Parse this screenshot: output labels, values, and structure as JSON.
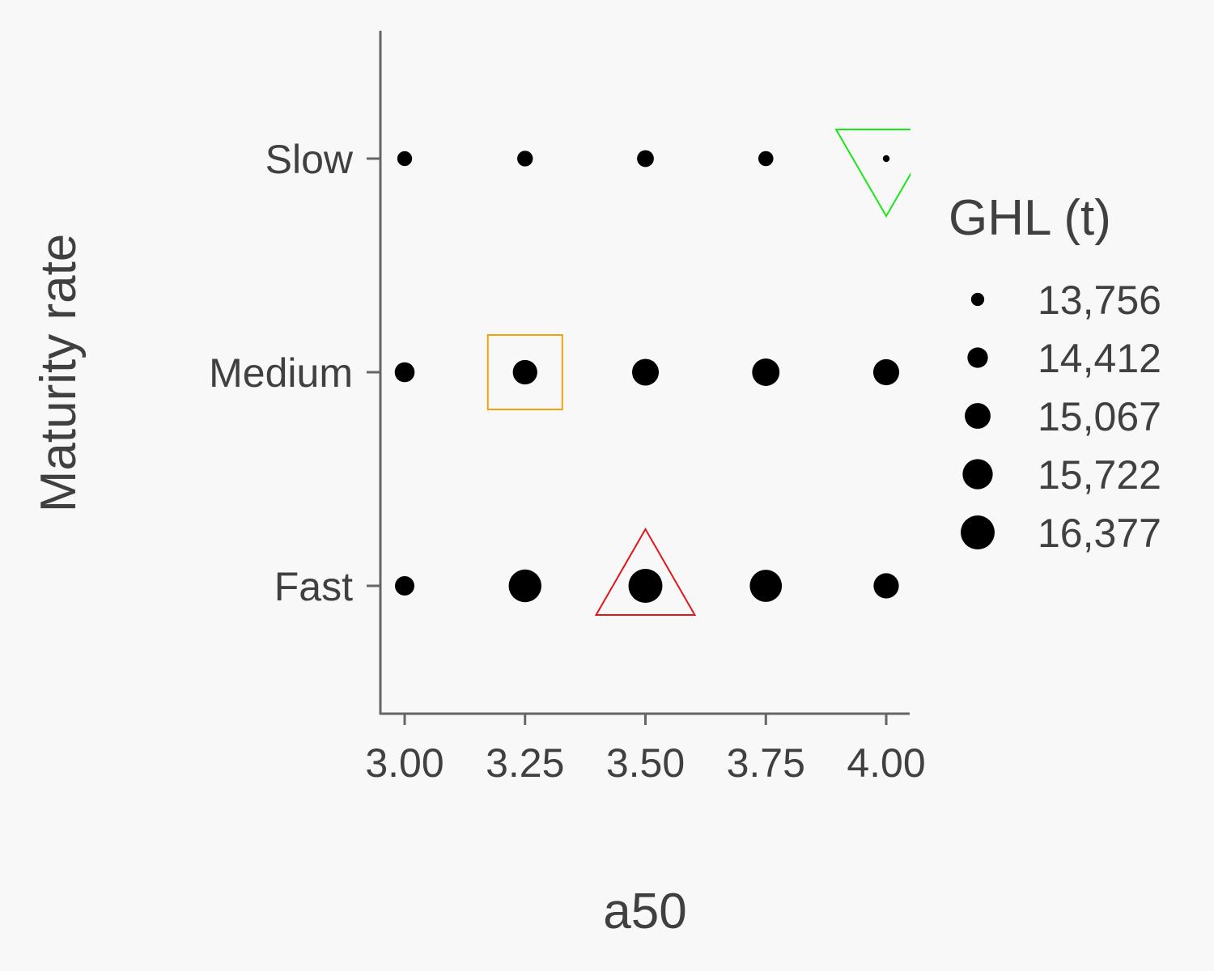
{
  "chart_data": {
    "type": "scatter",
    "title": "",
    "xlabel": "a50",
    "ylabel": "Maturity rate",
    "x_ticks": [
      "3.00",
      "3.25",
      "3.50",
      "3.75",
      "4.00"
    ],
    "x_values": [
      3.0,
      3.25,
      3.5,
      3.75,
      4.0
    ],
    "xlim": [
      2.95,
      4.05
    ],
    "categories": [
      "Slow",
      "Medium",
      "Fast"
    ],
    "size_variable": "GHL (t)",
    "points": [
      {
        "x": 3.0,
        "y": "Slow",
        "value": 13880
      },
      {
        "x": 3.25,
        "y": "Slow",
        "value": 13950
      },
      {
        "x": 3.5,
        "y": "Slow",
        "value": 14050
      },
      {
        "x": 3.75,
        "y": "Slow",
        "value": 13900
      },
      {
        "x": 4.0,
        "y": "Slow",
        "value": 13420
      },
      {
        "x": 3.0,
        "y": "Medium",
        "value": 14350
      },
      {
        "x": 3.25,
        "y": "Medium",
        "value": 14900
      },
      {
        "x": 3.5,
        "y": "Medium",
        "value": 15200
      },
      {
        "x": 3.75,
        "y": "Medium",
        "value": 15300
      },
      {
        "x": 4.0,
        "y": "Medium",
        "value": 15100
      },
      {
        "x": 3.0,
        "y": "Fast",
        "value": 14300
      },
      {
        "x": 3.25,
        "y": "Fast",
        "value": 16150
      },
      {
        "x": 3.5,
        "y": "Fast",
        "value": 16377
      },
      {
        "x": 3.75,
        "y": "Fast",
        "value": 16050
      },
      {
        "x": 4.0,
        "y": "Fast",
        "value": 15000
      }
    ],
    "legend": {
      "title": "GHL (t)",
      "position": "right",
      "entries": [
        {
          "label": "13,756",
          "value": 13756
        },
        {
          "label": "14,412",
          "value": 14412
        },
        {
          "label": "15,067",
          "value": 15067
        },
        {
          "label": "15,722",
          "value": 15722
        },
        {
          "label": "16,377",
          "value": 16377
        }
      ]
    },
    "markers": [
      {
        "shape": "square",
        "x": 3.25,
        "y": "Medium",
        "color": "#f0a30a"
      },
      {
        "shape": "triangle-up",
        "x": 3.5,
        "y": "Fast",
        "color": "#e3161c"
      },
      {
        "shape": "triangle-down",
        "x": 4.0,
        "y": "Slow",
        "color": "#19e619"
      }
    ],
    "size_range": [
      13300,
      16377
    ],
    "grid": false,
    "colors": {
      "points": "#000000",
      "axis": "#666666",
      "text": "#404040",
      "background": "#f8f8f8"
    }
  }
}
